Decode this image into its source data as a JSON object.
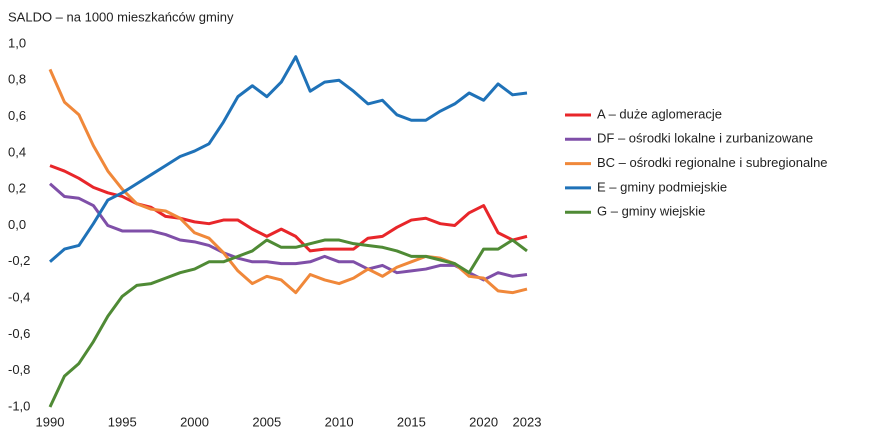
{
  "chart_data": {
    "type": "line",
    "title": "SALDO – na 1000 mieszkańców gminy",
    "x": [
      1990,
      1991,
      1992,
      1993,
      1994,
      1995,
      1996,
      1997,
      1998,
      1999,
      2000,
      2001,
      2002,
      2003,
      2004,
      2005,
      2006,
      2007,
      2008,
      2009,
      2010,
      2011,
      2012,
      2013,
      2014,
      2015,
      2016,
      2017,
      2018,
      2019,
      2020,
      2021,
      2022,
      2023
    ],
    "xlim": [
      1990,
      2023
    ],
    "xticks": [
      1990,
      1995,
      2000,
      2005,
      2010,
      2015,
      2020,
      2023
    ],
    "ylim": [
      -1.0,
      1.0
    ],
    "yticks": [
      {
        "value": 1.0,
        "label": "1,0"
      },
      {
        "value": 0.8,
        "label": "0,8"
      },
      {
        "value": 0.6,
        "label": "0,6"
      },
      {
        "value": 0.4,
        "label": "0,4"
      },
      {
        "value": 0.2,
        "label": "0,2"
      },
      {
        "value": 0.0,
        "label": "0,0"
      },
      {
        "value": -0.2,
        "label": "-0,2"
      },
      {
        "value": -0.4,
        "label": "-0,4"
      },
      {
        "value": -0.6,
        "label": "-0,6"
      },
      {
        "value": -0.8,
        "label": "-0,8"
      },
      {
        "value": -1.0,
        "label": "-1,0"
      }
    ],
    "grid": false,
    "legend": "right",
    "series": [
      {
        "name": "A – duże aglomeracje",
        "color": "#e8262a",
        "values": [
          0.33,
          0.3,
          0.26,
          0.21,
          0.18,
          0.16,
          0.12,
          0.1,
          0.05,
          0.04,
          0.02,
          0.01,
          0.03,
          0.03,
          -0.02,
          -0.06,
          -0.02,
          -0.06,
          -0.14,
          -0.13,
          -0.13,
          -0.13,
          -0.07,
          -0.06,
          -0.01,
          0.03,
          0.04,
          0.01,
          0.0,
          0.07,
          0.11,
          -0.04,
          -0.08,
          -0.06
        ]
      },
      {
        "name": "DF – ośrodki lokalne i zurbanizowane",
        "color": "#7f4fa8",
        "values": [
          0.23,
          0.16,
          0.15,
          0.11,
          0.0,
          -0.03,
          -0.03,
          -0.03,
          -0.05,
          -0.08,
          -0.09,
          -0.11,
          -0.15,
          -0.18,
          -0.2,
          -0.2,
          -0.21,
          -0.21,
          -0.2,
          -0.17,
          -0.2,
          -0.2,
          -0.24,
          -0.22,
          -0.26,
          -0.25,
          -0.24,
          -0.22,
          -0.22,
          -0.26,
          -0.3,
          -0.26,
          -0.28,
          -0.27
        ]
      },
      {
        "name": "BC – ośrodki regionalne i subregionalne",
        "color": "#f0883a",
        "values": [
          0.86,
          0.68,
          0.61,
          0.44,
          0.3,
          0.2,
          0.12,
          0.09,
          0.08,
          0.04,
          -0.04,
          -0.07,
          -0.15,
          -0.25,
          -0.32,
          -0.28,
          -0.3,
          -0.37,
          -0.27,
          -0.3,
          -0.32,
          -0.29,
          -0.24,
          -0.28,
          -0.23,
          -0.2,
          -0.17,
          -0.18,
          -0.21,
          -0.28,
          -0.29,
          -0.36,
          -0.37,
          -0.35
        ]
      },
      {
        "name": "E – gminy podmiejskie",
        "color": "#1f72b8",
        "values": [
          -0.2,
          -0.13,
          -0.11,
          0.01,
          0.14,
          0.18,
          0.23,
          0.28,
          0.33,
          0.38,
          0.41,
          0.45,
          0.57,
          0.71,
          0.77,
          0.71,
          0.79,
          0.93,
          0.74,
          0.79,
          0.8,
          0.74,
          0.67,
          0.69,
          0.61,
          0.58,
          0.58,
          0.63,
          0.67,
          0.73,
          0.69,
          0.78,
          0.72,
          0.73
        ]
      },
      {
        "name": "G – gminy wiejskie",
        "color": "#4f8a35",
        "values": [
          -1.0,
          -0.83,
          -0.76,
          -0.64,
          -0.5,
          -0.39,
          -0.33,
          -0.32,
          -0.29,
          -0.26,
          -0.24,
          -0.2,
          -0.2,
          -0.17,
          -0.14,
          -0.08,
          -0.12,
          -0.12,
          -0.1,
          -0.08,
          -0.08,
          -0.1,
          -0.11,
          -0.12,
          -0.14,
          -0.17,
          -0.17,
          -0.19,
          -0.21,
          -0.26,
          -0.13,
          -0.13,
          -0.08,
          -0.14
        ]
      }
    ]
  }
}
